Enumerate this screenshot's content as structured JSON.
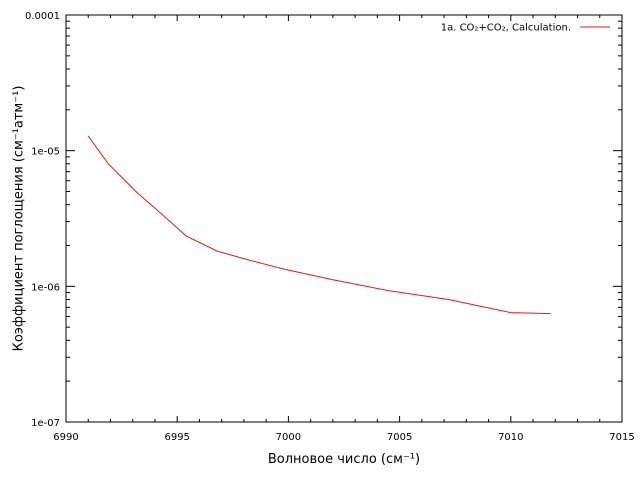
{
  "chart_data": {
    "type": "line",
    "xlabel": "Волновое число (см⁻¹)",
    "ylabel": "Коэффициент поглощения (см⁻¹атм⁻¹)",
    "xscale": "linear",
    "yscale": "log",
    "xlim": [
      6990,
      7015
    ],
    "ylim": [
      1e-07,
      0.0001
    ],
    "x_ticks": [
      6990,
      6995,
      7000,
      7005,
      7010,
      7015
    ],
    "x_tick_labels": [
      "6990",
      "6995",
      "7000",
      "7005",
      "7010",
      "7015"
    ],
    "y_ticks": [
      1e-07,
      1e-06,
      1e-05,
      0.0001
    ],
    "y_tick_labels": [
      "1e-07",
      "1e-06",
      "1e-05",
      "0.0001"
    ],
    "grid": false,
    "legend_position": "top-right",
    "series": [
      {
        "name": "1a. CO₂+CO₂, Calculation.",
        "color": "#e41a1c",
        "x": [
          6991.0,
          6991.9,
          6993.2,
          6994.4,
          6995.4,
          6996.8,
          6998.3,
          6999.8,
          7002.0,
          7004.5,
          7007.2,
          7010.0,
          7011.8
        ],
        "y": [
          1.28e-05,
          8e-06,
          4.9e-06,
          3.3e-06,
          2.35e-06,
          1.82e-06,
          1.55e-06,
          1.34e-06,
          1.12e-06,
          9.3e-07,
          8e-07,
          6.4e-07,
          6.3e-07
        ]
      }
    ]
  }
}
